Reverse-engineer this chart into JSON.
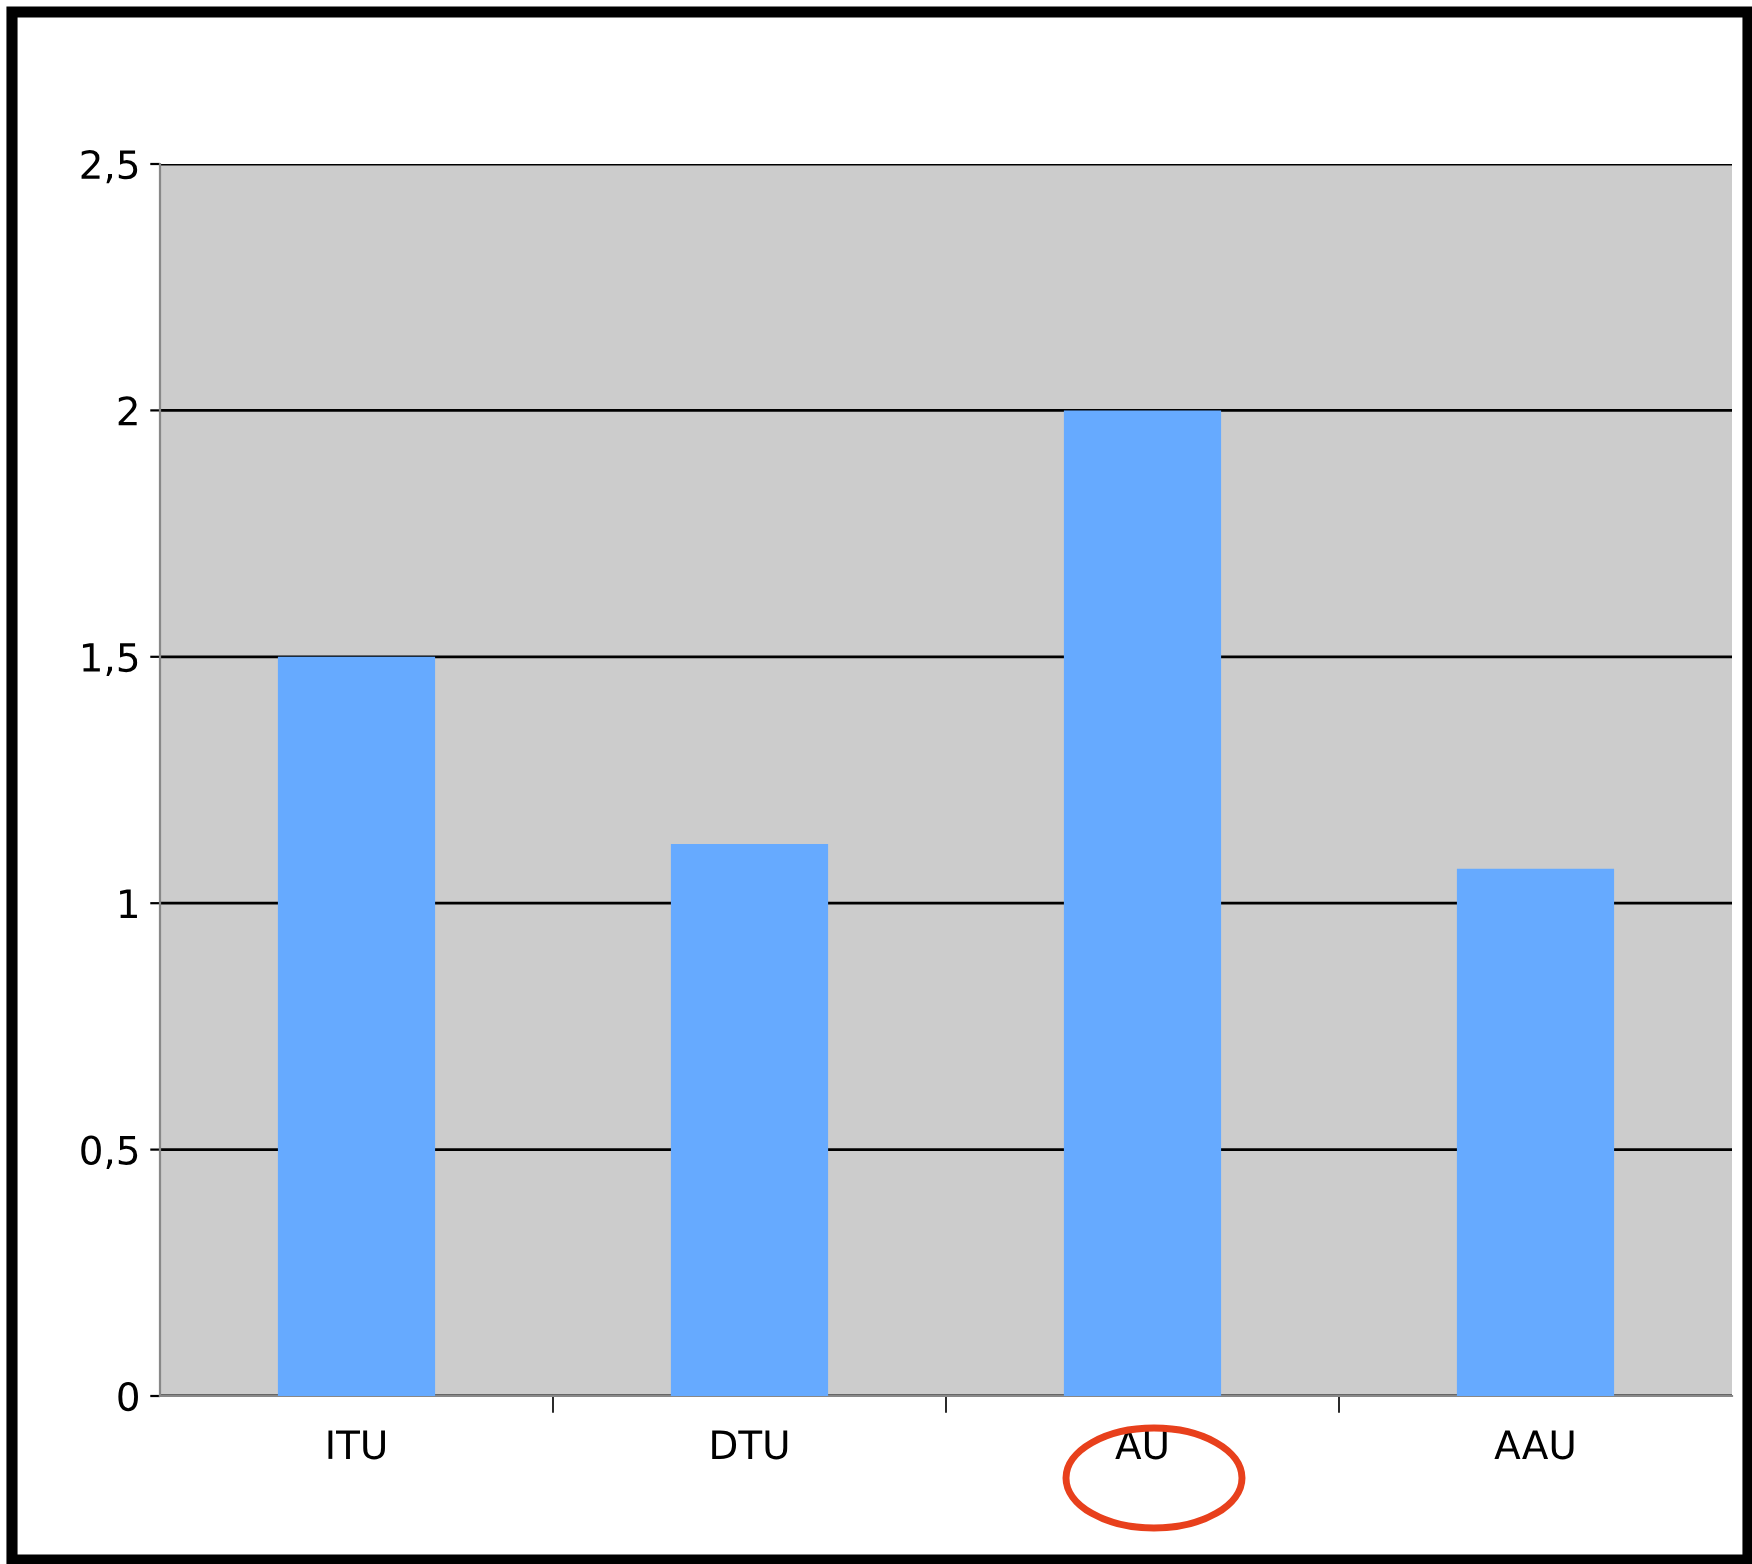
{
  "chart_data": {
    "type": "bar",
    "categories": [
      "ITU",
      "DTU",
      "AU",
      "AAU"
    ],
    "values": [
      1.5,
      1.12,
      2.0,
      1.07
    ],
    "color": "#66aaff",
    "ylim": [
      0,
      2.5
    ],
    "yticks": [
      0,
      {
        "value": 0.5,
        "label": "0,5"
      },
      1,
      {
        "value": 1.5,
        "label": "1,5"
      },
      2,
      {
        "value": 2.5,
        "label": "2,5"
      }
    ],
    "grid": "y",
    "legend": false
  }
}
